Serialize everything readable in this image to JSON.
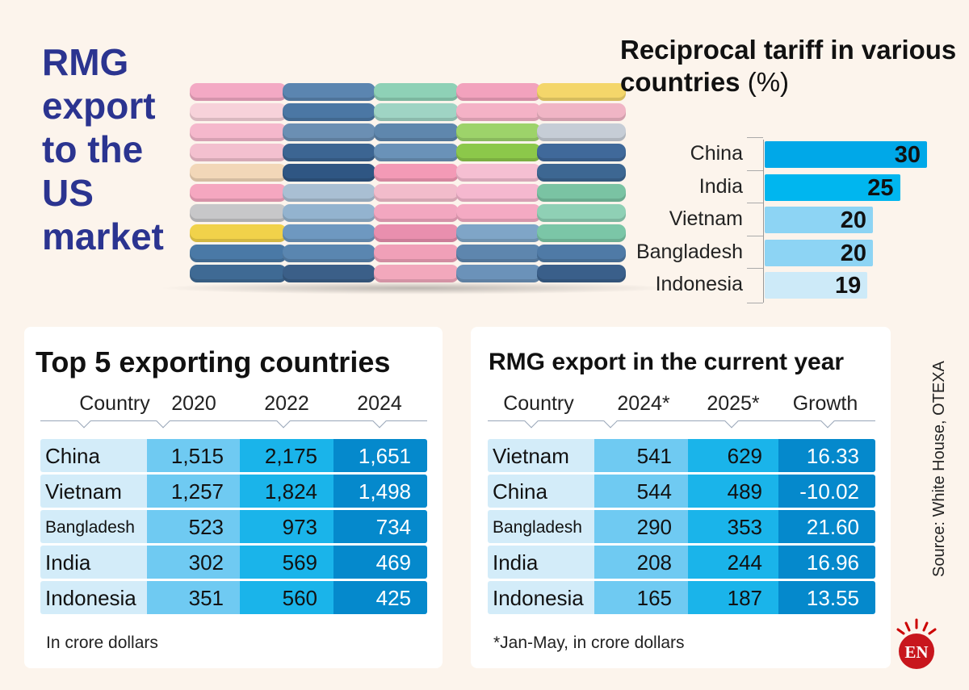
{
  "title": "RMG export to the US market",
  "chart_data": [
    {
      "type": "bar",
      "orientation": "horizontal",
      "title": "Reciprocal tariff in various countries",
      "title_unit": "(%)",
      "categories": [
        "China",
        "India",
        "Vietnam",
        "Bangladesh",
        "Indonesia"
      ],
      "values": [
        30,
        25,
        20,
        20,
        19
      ],
      "colors": [
        "#00a8e8",
        "#00b6ef",
        "#8dd4f4",
        "#8dd4f4",
        "#cdeaf8"
      ]
    },
    {
      "type": "table",
      "title": "Top 5 exporting countries",
      "columns": [
        "Country",
        "2020",
        "2022",
        "2024"
      ],
      "rows": [
        [
          "China",
          "1,515",
          "2,175",
          "1,651"
        ],
        [
          "Vietnam",
          "1,257",
          "1,824",
          "1,498"
        ],
        [
          "Bangladesh",
          "523",
          "973",
          "734"
        ],
        [
          "India",
          "302",
          "569",
          "469"
        ],
        [
          "Indonesia",
          "351",
          "560",
          "425"
        ]
      ],
      "note": "In crore dollars"
    },
    {
      "type": "table",
      "title": "RMG export in the current year",
      "columns": [
        "Country",
        "2024*",
        "2025*",
        "Growth"
      ],
      "rows": [
        [
          "Vietnam",
          "541",
          "629",
          "16.33"
        ],
        [
          "China",
          "544",
          "489",
          "-10.02"
        ],
        [
          "Bangladesh",
          "290",
          "353",
          "21.60"
        ],
        [
          "India",
          "208",
          "244",
          "16.96"
        ],
        [
          "Indonesia",
          "165",
          "187",
          "13.55"
        ]
      ],
      "note": "*Jan-May, in crore dollars"
    }
  ],
  "source": "Source: White House,  OTEXA",
  "logo": "EN"
}
